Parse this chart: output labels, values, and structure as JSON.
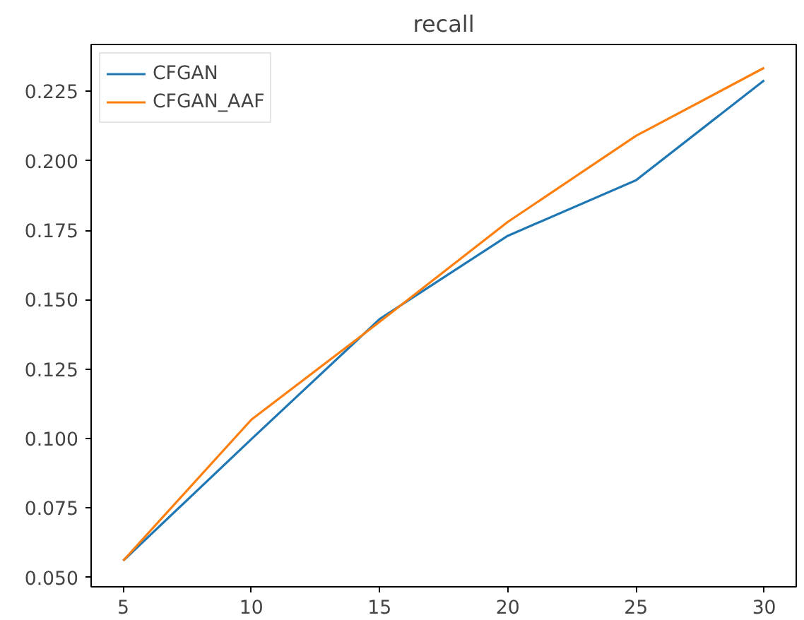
{
  "chart_data": {
    "type": "line",
    "title": "recall",
    "x": [
      5,
      10,
      15,
      20,
      25,
      30
    ],
    "series": [
      {
        "name": "CFGAN",
        "color": "#1f77b4",
        "values": [
          0.056,
          0.0998,
          0.143,
          0.173,
          0.193,
          0.229
        ]
      },
      {
        "name": "CFGAN_AAF",
        "color": "#ff7f0e",
        "values": [
          0.056,
          0.1068,
          0.142,
          0.178,
          0.209,
          0.2335
        ]
      }
    ],
    "xlim": [
      3.75,
      31.25
    ],
    "xticks": [
      5,
      10,
      15,
      20,
      25,
      30
    ],
    "ylim": [
      0.0466,
      0.2419
    ],
    "yticks": [
      {
        "value": 0.05,
        "label": "0.050"
      },
      {
        "value": 0.075,
        "label": "0.075"
      },
      {
        "value": 0.1,
        "label": "0.100"
      },
      {
        "value": 0.125,
        "label": "0.125"
      },
      {
        "value": 0.15,
        "label": "0.150"
      },
      {
        "value": 0.175,
        "label": "0.175"
      },
      {
        "value": 0.2,
        "label": "0.200"
      },
      {
        "value": 0.225,
        "label": "0.225"
      }
    ],
    "legend": "top left",
    "grid": false,
    "line_style": "solid",
    "marker": "none"
  }
}
